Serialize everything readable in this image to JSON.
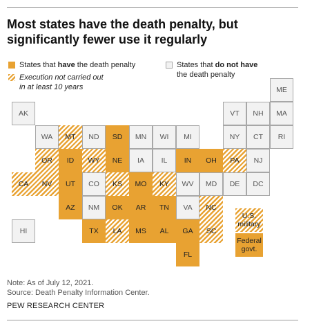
{
  "title": "Most states have the death penalty, but significantly fewer use it regularly",
  "legend": {
    "has": {
      "prefix": "States that ",
      "emphasis": "have",
      "suffix": " the death penalty"
    },
    "not_used": {
      "line1": "Execution not carried out",
      "line2": "in at least 10 years"
    },
    "none": {
      "prefix": "States that ",
      "emphasis": "do not have",
      "line2": "the death penalty"
    }
  },
  "colors": {
    "accent": "#e8a232",
    "none_fill": "#f2f2f2",
    "none_border": "#a7a7a7"
  },
  "chart_data": {
    "type": "table",
    "categories": [
      "has_death_penalty",
      "no_execution_in_10_years",
      "no_death_penalty"
    ],
    "tiles": [
      {
        "label": "ME",
        "status": "none",
        "col": 11,
        "row": 0
      },
      {
        "label": "AK",
        "status": "none",
        "col": 0,
        "row": 1
      },
      {
        "label": "VT",
        "status": "none",
        "col": 9,
        "row": 1
      },
      {
        "label": "NH",
        "status": "none",
        "col": 10,
        "row": 1
      },
      {
        "label": "MA",
        "status": "none",
        "col": 11,
        "row": 1
      },
      {
        "label": "WA",
        "status": "none",
        "col": 1,
        "row": 2
      },
      {
        "label": "MT",
        "status": "not_used",
        "col": 2,
        "row": 2
      },
      {
        "label": "ND",
        "status": "none",
        "col": 3,
        "row": 2
      },
      {
        "label": "SD",
        "status": "has",
        "col": 4,
        "row": 2
      },
      {
        "label": "MN",
        "status": "none",
        "col": 5,
        "row": 2
      },
      {
        "label": "WI",
        "status": "none",
        "col": 6,
        "row": 2
      },
      {
        "label": "MI",
        "status": "none",
        "col": 7,
        "row": 2
      },
      {
        "label": "NY",
        "status": "none",
        "col": 9,
        "row": 2
      },
      {
        "label": "CT",
        "status": "none",
        "col": 10,
        "row": 2
      },
      {
        "label": "RI",
        "status": "none",
        "col": 11,
        "row": 2
      },
      {
        "label": "OR",
        "status": "not_used",
        "col": 1,
        "row": 3
      },
      {
        "label": "ID",
        "status": "has",
        "col": 2,
        "row": 3
      },
      {
        "label": "WY",
        "status": "not_used",
        "col": 3,
        "row": 3
      },
      {
        "label": "NE",
        "status": "has",
        "col": 4,
        "row": 3
      },
      {
        "label": "IA",
        "status": "none",
        "col": 5,
        "row": 3
      },
      {
        "label": "IL",
        "status": "none",
        "col": 6,
        "row": 3
      },
      {
        "label": "IN",
        "status": "has",
        "col": 7,
        "row": 3
      },
      {
        "label": "OH",
        "status": "has",
        "col": 8,
        "row": 3
      },
      {
        "label": "PA",
        "status": "not_used",
        "col": 9,
        "row": 3
      },
      {
        "label": "NJ",
        "status": "none",
        "col": 10,
        "row": 3
      },
      {
        "label": "CA",
        "status": "not_used",
        "col": 0,
        "row": 4
      },
      {
        "label": "NV",
        "status": "not_used",
        "col": 1,
        "row": 4
      },
      {
        "label": "UT",
        "status": "has",
        "col": 2,
        "row": 4
      },
      {
        "label": "CO",
        "status": "none",
        "col": 3,
        "row": 4
      },
      {
        "label": "KS",
        "status": "not_used",
        "col": 4,
        "row": 4
      },
      {
        "label": "MO",
        "status": "has",
        "col": 5,
        "row": 4
      },
      {
        "label": "KY",
        "status": "not_used",
        "col": 6,
        "row": 4
      },
      {
        "label": "WV",
        "status": "none",
        "col": 7,
        "row": 4
      },
      {
        "label": "MD",
        "status": "none",
        "col": 8,
        "row": 4
      },
      {
        "label": "DE",
        "status": "none",
        "col": 9,
        "row": 4
      },
      {
        "label": "DC",
        "status": "none",
        "col": 10,
        "row": 4
      },
      {
        "label": "AZ",
        "status": "has",
        "col": 2,
        "row": 5
      },
      {
        "label": "NM",
        "status": "none",
        "col": 3,
        "row": 5
      },
      {
        "label": "OK",
        "status": "has",
        "col": 4,
        "row": 5
      },
      {
        "label": "AR",
        "status": "has",
        "col": 5,
        "row": 5
      },
      {
        "label": "TN",
        "status": "has",
        "col": 6,
        "row": 5
      },
      {
        "label": "VA",
        "status": "none",
        "col": 7,
        "row": 5
      },
      {
        "label": "NC",
        "status": "not_used",
        "col": 8,
        "row": 5
      },
      {
        "label": "HI",
        "status": "none",
        "col": 0,
        "row": 6
      },
      {
        "label": "TX",
        "status": "has",
        "col": 3,
        "row": 6
      },
      {
        "label": "LA",
        "status": "not_used",
        "col": 4,
        "row": 6
      },
      {
        "label": "MS",
        "status": "has",
        "col": 5,
        "row": 6
      },
      {
        "label": "AL",
        "status": "has",
        "col": 6,
        "row": 6
      },
      {
        "label": "GA",
        "status": "has",
        "col": 7,
        "row": 6
      },
      {
        "label": "SC",
        "status": "not_used",
        "col": 8,
        "row": 6
      },
      {
        "label": "FL",
        "status": "has",
        "col": 7,
        "row": 7
      }
    ],
    "extra_tiles": [
      {
        "label": "U.S. military",
        "status": "not_used"
      },
      {
        "label": "Federal govt.",
        "status": "has"
      }
    ]
  },
  "footer": {
    "note": "Note: As of July 12, 2021.",
    "source": "Source: Death Penalty Information Center.",
    "org": "PEW RESEARCH CENTER"
  }
}
